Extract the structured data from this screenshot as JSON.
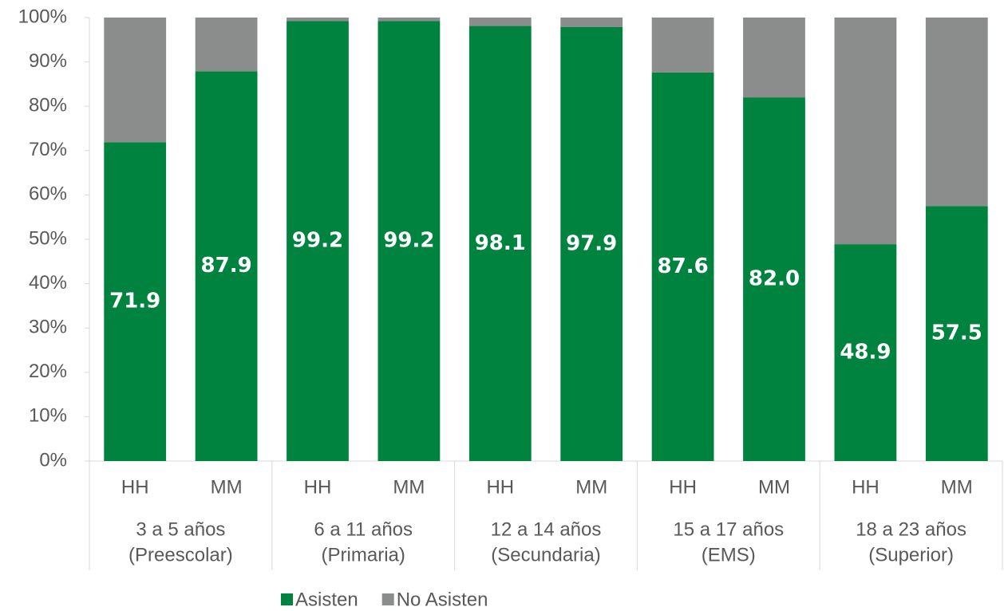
{
  "chart_data": {
    "type": "stacked_bar",
    "categories": [
      "HH",
      "MM",
      "HH",
      "MM",
      "HH",
      "MM",
      "HH",
      "MM",
      "HH",
      "MM"
    ],
    "groups": [
      [
        "3 a 5 años",
        "(Preescolar)"
      ],
      [
        "6 a 11 años",
        "(Primaria)"
      ],
      [
        "12 a 14 años",
        "(Secundaria)"
      ],
      [
        "15 a 17 años",
        "(EMS)"
      ],
      [
        "18 a 23 años",
        "(Superior)"
      ]
    ],
    "series": [
      {
        "name": "Asisten",
        "color": "#00833e",
        "values": [
          71.9,
          87.9,
          99.2,
          99.2,
          98.1,
          97.9,
          87.6,
          82.0,
          48.9,
          57.5
        ],
        "value_labels": [
          "71.9",
          "87.9",
          "99.2",
          "99.2",
          "98.1",
          "97.9",
          "87.6",
          "82.0",
          "48.9",
          "57.5"
        ]
      },
      {
        "name": "No Asisten",
        "color": "#8b8d8d",
        "values": [
          28.1,
          12.1,
          0.8,
          0.8,
          1.9,
          2.1,
          12.4,
          18.0,
          51.1,
          42.5
        ]
      }
    ],
    "ylim": [
      0,
      100
    ],
    "yticks": [
      {
        "value": 0,
        "label": "0%"
      },
      {
        "value": 10,
        "label": "10%"
      },
      {
        "value": 20,
        "label": "20%"
      },
      {
        "value": 30,
        "label": "30%"
      },
      {
        "value": 40,
        "label": "40%"
      },
      {
        "value": 50,
        "label": "50%"
      },
      {
        "value": 60,
        "label": "60%"
      },
      {
        "value": 70,
        "label": "70%"
      },
      {
        "value": 80,
        "label": "80%"
      },
      {
        "value": 90,
        "label": "90%"
      },
      {
        "value": 100,
        "label": "100%"
      }
    ],
    "legend": "bottom"
  }
}
